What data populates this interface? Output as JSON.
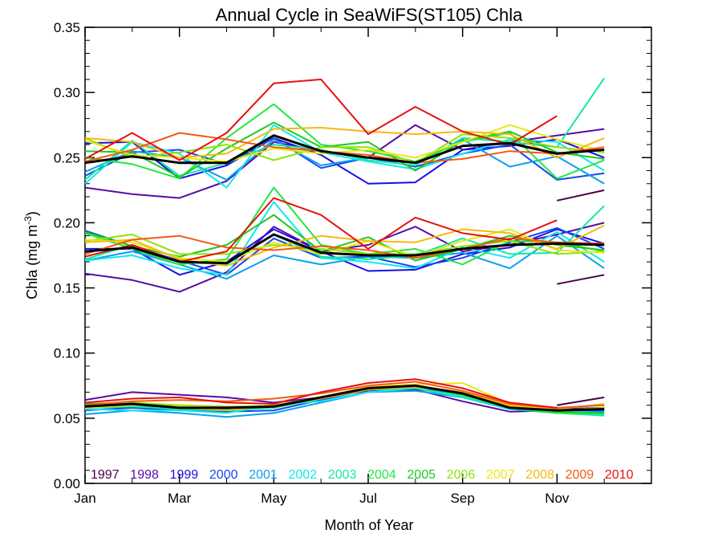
{
  "chart_data": {
    "type": "line",
    "title": "Annual Cycle in SeaWiFS(ST105) Chla",
    "xlabel": "Month of Year",
    "ylabel_main": "Chla (mg m",
    "ylabel_sup": "-3",
    "ylabel_close": ")",
    "xlim": [
      1,
      13
    ],
    "ylim": [
      0,
      0.35
    ],
    "x": [
      1,
      2,
      3,
      4,
      5,
      6,
      7,
      8,
      9,
      10,
      11,
      12
    ],
    "x_ticks": [
      1,
      3,
      5,
      7,
      9,
      11
    ],
    "x_tick_labels": [
      "Jan",
      "Mar",
      "May",
      "Jul",
      "Sep",
      "Nov"
    ],
    "y_ticks": [
      0,
      0.05,
      0.1,
      0.15,
      0.2,
      0.25,
      0.3,
      0.35
    ],
    "y_tick_labels": [
      "0.00",
      "0.05",
      "0.10",
      "0.15",
      "0.20",
      "0.25",
      "0.30",
      "0.35"
    ],
    "grid": false,
    "legend_position": "bottom",
    "groups": [
      "upper",
      "middle",
      "lower"
    ],
    "series": [
      {
        "name": "1997",
        "color": "#4b0050",
        "upper": [
          null,
          null,
          null,
          null,
          null,
          null,
          null,
          null,
          null,
          null,
          0.217,
          0.225
        ],
        "middle": [
          null,
          null,
          null,
          null,
          null,
          null,
          null,
          null,
          null,
          null,
          0.153,
          0.16
        ],
        "lower": [
          null,
          null,
          null,
          null,
          null,
          null,
          null,
          null,
          null,
          null,
          0.06,
          0.066
        ]
      },
      {
        "name": "1998",
        "color": "#5a0aa8",
        "upper": [
          0.227,
          0.222,
          0.219,
          0.232,
          0.262,
          0.255,
          0.25,
          0.275,
          0.256,
          0.262,
          0.267,
          0.272
        ],
        "middle": [
          0.161,
          0.156,
          0.147,
          0.162,
          0.197,
          0.178,
          0.183,
          0.197,
          0.178,
          0.183,
          0.191,
          0.2
        ],
        "lower": [
          0.064,
          0.07,
          0.068,
          0.066,
          0.062,
          0.066,
          0.071,
          0.072,
          0.063,
          0.055,
          0.056,
          0.058
        ]
      },
      {
        "name": "1999",
        "color": "#1a0ee6",
        "upper": [
          0.261,
          0.262,
          0.234,
          0.244,
          0.265,
          0.252,
          0.23,
          0.231,
          0.256,
          0.259,
          0.264,
          0.25
        ],
        "middle": [
          0.18,
          0.18,
          0.16,
          0.17,
          0.195,
          0.178,
          0.163,
          0.164,
          0.176,
          0.181,
          0.195,
          0.184
        ],
        "lower": [
          0.058,
          0.059,
          0.058,
          0.057,
          0.058,
          0.066,
          0.072,
          0.073,
          0.068,
          0.057,
          0.057,
          0.058
        ]
      },
      {
        "name": "2000",
        "color": "#1448f0",
        "upper": [
          0.236,
          0.254,
          0.256,
          0.245,
          0.265,
          0.242,
          0.25,
          0.243,
          0.253,
          0.26,
          0.233,
          0.238
        ],
        "middle": [
          0.194,
          0.182,
          0.171,
          0.16,
          0.188,
          0.173,
          0.174,
          0.166,
          0.173,
          0.185,
          0.196,
          0.18
        ],
        "lower": [
          0.056,
          0.058,
          0.056,
          0.055,
          0.056,
          0.064,
          0.072,
          0.074,
          0.067,
          0.057,
          0.056,
          0.056
        ]
      },
      {
        "name": "2001",
        "color": "#0aa0f0",
        "upper": [
          0.239,
          0.255,
          0.25,
          0.233,
          0.264,
          0.244,
          0.25,
          0.246,
          0.264,
          0.243,
          0.251,
          0.23
        ],
        "middle": [
          0.171,
          0.178,
          0.168,
          0.157,
          0.175,
          0.168,
          0.174,
          0.173,
          0.177,
          0.165,
          0.19,
          0.165
        ],
        "lower": [
          0.053,
          0.056,
          0.054,
          0.051,
          0.054,
          0.062,
          0.07,
          0.071,
          0.066,
          0.057,
          0.054,
          0.055
        ]
      },
      {
        "name": "2002",
        "color": "#10e8ee",
        "upper": [
          0.23,
          0.262,
          0.253,
          0.227,
          0.275,
          0.254,
          0.247,
          0.241,
          0.253,
          0.264,
          0.262,
          0.24
        ],
        "middle": [
          0.171,
          0.175,
          0.165,
          0.16,
          0.216,
          0.173,
          0.17,
          0.165,
          0.181,
          0.173,
          0.193,
          0.17
        ],
        "lower": [
          0.057,
          0.056,
          0.056,
          0.054,
          0.06,
          0.063,
          0.07,
          0.073,
          0.067,
          0.057,
          0.055,
          0.053
        ]
      },
      {
        "name": "2003",
        "color": "#14e8a0",
        "upper": [
          0.233,
          0.263,
          0.236,
          0.246,
          0.26,
          0.256,
          0.248,
          0.244,
          0.265,
          0.262,
          0.258,
          0.311
        ],
        "middle": [
          0.172,
          0.183,
          0.17,
          0.168,
          0.191,
          0.174,
          0.172,
          0.175,
          0.188,
          0.176,
          0.177,
          0.213
        ],
        "lower": [
          0.058,
          0.059,
          0.057,
          0.056,
          0.058,
          0.065,
          0.072,
          0.073,
          0.066,
          0.058,
          0.054,
          0.052
        ]
      },
      {
        "name": "2004",
        "color": "#20e840",
        "upper": [
          0.25,
          0.245,
          0.234,
          0.265,
          0.291,
          0.26,
          0.255,
          0.247,
          0.262,
          0.269,
          0.234,
          0.248
        ],
        "middle": [
          0.192,
          0.18,
          0.168,
          0.172,
          0.227,
          0.183,
          0.176,
          0.18,
          0.168,
          0.186,
          0.185,
          0.178
        ],
        "lower": [
          0.06,
          0.061,
          0.059,
          0.058,
          0.059,
          0.066,
          0.073,
          0.075,
          0.068,
          0.058,
          0.054,
          0.054
        ]
      },
      {
        "name": "2005",
        "color": "#20c820",
        "upper": [
          0.255,
          0.254,
          0.235,
          0.257,
          0.277,
          0.258,
          0.262,
          0.24,
          0.263,
          0.27,
          0.254,
          0.249
        ],
        "middle": [
          0.193,
          0.182,
          0.174,
          0.183,
          0.206,
          0.178,
          0.189,
          0.171,
          0.18,
          0.19,
          0.183,
          0.179
        ],
        "lower": [
          0.061,
          0.062,
          0.059,
          0.057,
          0.059,
          0.066,
          0.074,
          0.075,
          0.068,
          0.059,
          0.055,
          0.054
        ]
      },
      {
        "name": "2006",
        "color": "#90e010",
        "upper": [
          0.265,
          0.25,
          0.254,
          0.26,
          0.248,
          0.258,
          0.258,
          0.246,
          0.268,
          0.265,
          0.258,
          0.254
        ],
        "middle": [
          0.186,
          0.191,
          0.176,
          0.176,
          0.183,
          0.18,
          0.176,
          0.176,
          0.182,
          0.186,
          0.176,
          0.178
        ],
        "lower": [
          0.059,
          0.062,
          0.06,
          0.059,
          0.059,
          0.066,
          0.073,
          0.074,
          0.07,
          0.059,
          0.056,
          0.058
        ]
      },
      {
        "name": "2007",
        "color": "#e8e810",
        "upper": [
          0.263,
          0.252,
          0.25,
          0.247,
          0.257,
          0.253,
          0.256,
          0.25,
          0.262,
          0.275,
          0.264,
          0.255
        ],
        "middle": [
          0.187,
          0.185,
          0.173,
          0.17,
          0.185,
          0.176,
          0.186,
          0.174,
          0.186,
          0.195,
          0.179,
          0.177
        ],
        "lower": [
          0.058,
          0.06,
          0.059,
          0.058,
          0.06,
          0.066,
          0.074,
          0.076,
          0.077,
          0.061,
          0.058,
          0.06
        ]
      },
      {
        "name": "2008",
        "color": "#f8b810",
        "upper": [
          0.265,
          0.262,
          0.25,
          0.253,
          0.272,
          0.273,
          0.27,
          0.268,
          0.27,
          0.268,
          0.25,
          0.265
        ],
        "middle": [
          0.185,
          0.187,
          0.172,
          0.167,
          0.181,
          0.19,
          0.186,
          0.185,
          0.195,
          0.192,
          0.18,
          0.198
        ],
        "lower": [
          0.059,
          0.061,
          0.058,
          0.056,
          0.06,
          0.065,
          0.072,
          0.074,
          0.07,
          0.06,
          0.057,
          0.061
        ]
      },
      {
        "name": "2009",
        "color": "#f45a10",
        "upper": [
          0.247,
          0.256,
          0.269,
          0.264,
          0.258,
          0.255,
          0.252,
          0.246,
          0.249,
          0.255,
          0.253,
          0.258
        ],
        "middle": [
          0.176,
          0.187,
          0.19,
          0.181,
          0.179,
          0.182,
          0.179,
          0.173,
          0.18,
          0.188,
          0.185,
          0.184
        ],
        "lower": [
          0.06,
          0.063,
          0.064,
          0.063,
          0.065,
          0.069,
          0.075,
          0.078,
          0.071,
          0.061,
          0.058,
          0.06
        ]
      },
      {
        "name": "2010",
        "color": "#e81010",
        "upper": [
          0.249,
          0.269,
          0.248,
          0.269,
          0.307,
          0.31,
          0.268,
          0.289,
          0.27,
          0.26,
          0.282,
          null
        ],
        "middle": [
          0.174,
          0.183,
          0.17,
          0.178,
          0.219,
          0.206,
          0.18,
          0.204,
          0.192,
          0.187,
          0.202,
          null
        ],
        "lower": [
          0.062,
          0.065,
          0.066,
          0.062,
          0.061,
          0.07,
          0.077,
          0.08,
          0.073,
          0.062,
          0.058,
          null
        ]
      },
      {
        "name": "",
        "color": "#000000",
        "width": 3,
        "upper": [
          0.246,
          0.251,
          0.246,
          0.246,
          0.267,
          0.255,
          0.25,
          0.246,
          0.259,
          0.261,
          0.253,
          0.256
        ],
        "middle": [
          0.178,
          0.181,
          0.17,
          0.169,
          0.191,
          0.177,
          0.175,
          0.175,
          0.18,
          0.183,
          0.184,
          0.183
        ],
        "lower": [
          0.059,
          0.061,
          0.058,
          0.058,
          0.059,
          0.066,
          0.073,
          0.075,
          0.069,
          0.058,
          0.056,
          0.057
        ]
      }
    ]
  }
}
